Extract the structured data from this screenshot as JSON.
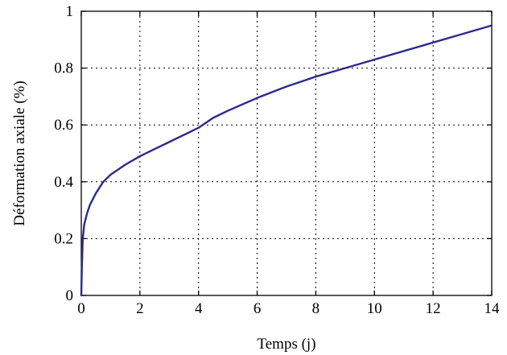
{
  "chart_data": {
    "type": "line",
    "title": "",
    "xlabel": "Temps (j)",
    "ylabel": "Déformation axiale (%)",
    "xlim": [
      0,
      14
    ],
    "ylim": [
      0,
      1
    ],
    "xticks": [
      "0",
      "2",
      "4",
      "6",
      "8",
      "10",
      "12",
      "14"
    ],
    "yticks": [
      "0",
      "0.2",
      "0.4",
      "0.6",
      "0.8",
      "1"
    ],
    "grid": true,
    "legend": "none",
    "series": [
      {
        "color": "#2b2b8c",
        "x": [
          0,
          0.02,
          0.05,
          0.1,
          0.2,
          0.3,
          0.5,
          0.75,
          1,
          1.5,
          2,
          2.5,
          3,
          3.5,
          4,
          4.5,
          5,
          6,
          7,
          8,
          9,
          10,
          11,
          12,
          13,
          14
        ],
        "y": [
          0,
          0.1,
          0.2,
          0.25,
          0.29,
          0.32,
          0.36,
          0.4,
          0.425,
          0.46,
          0.49,
          0.515,
          0.54,
          0.565,
          0.59,
          0.625,
          0.65,
          0.695,
          0.735,
          0.77,
          0.8,
          0.83,
          0.86,
          0.89,
          0.92,
          0.95
        ]
      }
    ]
  }
}
